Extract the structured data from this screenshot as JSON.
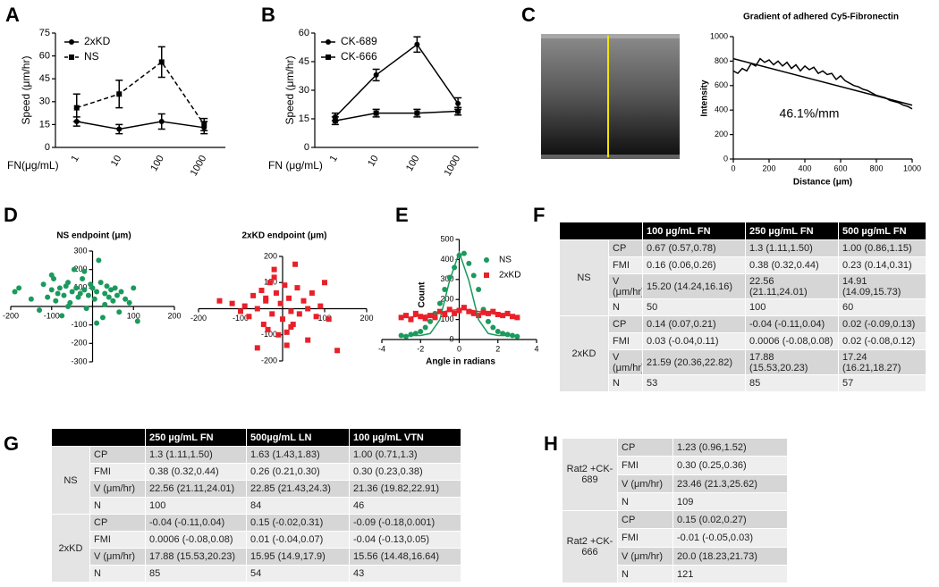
{
  "panel_labels": [
    "A",
    "B",
    "C",
    "D",
    "E",
    "F",
    "G",
    "H"
  ],
  "chart_data": [
    {
      "type": "line",
      "categories": [
        "1",
        "10",
        "100",
        "1000"
      ],
      "ylabel": "Speed (μm/hr)",
      "xlabel": "FN(μg/mL)",
      "ylim": [
        0,
        75
      ],
      "yticks": [
        0,
        15,
        30,
        45,
        60,
        75
      ],
      "series": [
        {
          "name": "2xKD",
          "color": "#000000",
          "marker": "circle",
          "dash": false,
          "values": [
            17,
            12,
            17,
            13
          ],
          "errors": [
            3,
            3,
            5,
            4
          ]
        },
        {
          "name": "NS",
          "color": "#000000",
          "marker": "square",
          "dash": true,
          "values": [
            26,
            35,
            56,
            15
          ],
          "errors": [
            9,
            9,
            10,
            4
          ]
        }
      ]
    },
    {
      "type": "line",
      "categories": [
        "1",
        "10",
        "100",
        "1000"
      ],
      "ylabel": "Speed (μm/hr)",
      "xlabel": "FN (μg/mL)",
      "ylim": [
        0,
        60
      ],
      "yticks": [
        0,
        15,
        30,
        45,
        60
      ],
      "series": [
        {
          "name": "CK-689",
          "color": "#000000",
          "marker": "circle",
          "dash": false,
          "values": [
            16,
            38,
            54,
            23
          ],
          "errors": [
            2,
            3,
            4,
            3
          ]
        },
        {
          "name": "CK-666",
          "color": "#000000",
          "marker": "square",
          "dash": false,
          "values": [
            14,
            18,
            18,
            19
          ],
          "errors": [
            2,
            2,
            2,
            2
          ]
        }
      ]
    },
    {
      "type": "line",
      "title": "Gradient of adhered Cy5-Fibronectin",
      "xlabel": "Distance (μm)",
      "ylabel": "Intensity",
      "annotation": "46.1%/mm",
      "xlim": [
        0,
        1000
      ],
      "ylim": [
        0,
        1000
      ],
      "xticks": [
        0,
        200,
        400,
        600,
        800,
        1000
      ],
      "yticks": [
        0,
        200,
        400,
        600,
        800,
        1000
      ],
      "series": [
        {
          "color": "#000000",
          "x": [
            0,
            25,
            50,
            75,
            100,
            125,
            150,
            175,
            200,
            225,
            250,
            275,
            300,
            325,
            350,
            375,
            400,
            425,
            450,
            475,
            500,
            525,
            550,
            575,
            600,
            625,
            650,
            675,
            700,
            725,
            750,
            775,
            800,
            825,
            850,
            875,
            900,
            925,
            950,
            975,
            1000
          ],
          "values": [
            720,
            700,
            740,
            720,
            780,
            760,
            820,
            790,
            810,
            770,
            800,
            760,
            790,
            740,
            770,
            720,
            760,
            730,
            750,
            700,
            720,
            690,
            700,
            650,
            680,
            640,
            620,
            600,
            590,
            570,
            560,
            540,
            520,
            510,
            500,
            480,
            470,
            460,
            440,
            430,
            410
          ]
        },
        {
          "color": "#000000",
          "x": [
            0,
            1000
          ],
          "values": [
            820,
            440
          ]
        }
      ]
    },
    {
      "type": "scatter",
      "title": "NS endpoint (μm)",
      "xlim": [
        -200,
        200
      ],
      "ylim": [
        -300,
        300
      ],
      "xticks": [
        -200,
        -100,
        100,
        200
      ],
      "yticks": [
        -300,
        -200,
        -100,
        100,
        200,
        300
      ],
      "series": [
        {
          "color": "#1a9a5c",
          "marker": "circle",
          "x": [
            -190,
            -180,
            -150,
            -130,
            -120,
            -110,
            -100,
            -95,
            -90,
            -85,
            -80,
            -75,
            -70,
            -65,
            -60,
            -55,
            -50,
            -45,
            -40,
            -35,
            -30,
            -25,
            -20,
            -15,
            -10,
            -5,
            0,
            5,
            10,
            15,
            20,
            25,
            30,
            35,
            40,
            45,
            50,
            55,
            60,
            65,
            70,
            80,
            90,
            100,
            110,
            -60,
            -20,
            10,
            30,
            -100
          ],
          "values": [
            80,
            100,
            40,
            -20,
            120,
            50,
            90,
            150,
            30,
            70,
            100,
            -50,
            60,
            110,
            130,
            20,
            80,
            200,
            100,
            50,
            70,
            150,
            90,
            -10,
            60,
            120,
            100,
            40,
            80,
            250,
            130,
            -60,
            70,
            110,
            50,
            90,
            30,
            100,
            60,
            -30,
            80,
            40,
            20,
            100,
            -80,
            0,
            190,
            -90,
            10,
            170
          ]
        }
      ]
    },
    {
      "type": "scatter",
      "title": "2xKD endpoint (μm)",
      "xlim": [
        -200,
        200
      ],
      "ylim": [
        -200,
        200
      ],
      "xticks": [
        -200,
        -100,
        100,
        200
      ],
      "yticks": [
        -200,
        -100,
        100,
        200
      ],
      "series": [
        {
          "color": "#e8202a",
          "marker": "square",
          "x": [
            -150,
            -120,
            -100,
            -90,
            -80,
            -70,
            -60,
            -50,
            -45,
            -40,
            -35,
            -30,
            -25,
            -20,
            -15,
            -10,
            -5,
            0,
            5,
            10,
            15,
            20,
            25,
            30,
            35,
            40,
            50,
            60,
            70,
            80,
            90,
            100,
            110,
            130,
            -60,
            -20,
            10,
            -40,
            20,
            60
          ],
          "values": [
            30,
            20,
            -10,
            10,
            -30,
            50,
            0,
            70,
            -60,
            30,
            -80,
            100,
            -20,
            150,
            60,
            -100,
            20,
            -40,
            90,
            -140,
            40,
            -10,
            -60,
            170,
            80,
            -20,
            30,
            -120,
            60,
            -30,
            10,
            100,
            -40,
            -160,
            -150,
            120,
            -90,
            40,
            -70,
            0
          ]
        }
      ]
    },
    {
      "type": "scatter",
      "xlabel": "Angle in radians",
      "ylabel": "Count",
      "xlim": [
        -4,
        4
      ],
      "ylim": [
        0,
        500
      ],
      "xticks": [
        -4,
        -2,
        0,
        2,
        4
      ],
      "yticks": [
        0,
        100,
        200,
        300,
        400,
        500
      ],
      "series": [
        {
          "name": "NS",
          "color": "#1a9a5c",
          "marker": "circle",
          "x": [
            -3,
            -2.75,
            -2.5,
            -2.25,
            -2,
            -1.75,
            -1.5,
            -1.25,
            -1,
            -0.75,
            -0.5,
            -0.25,
            0,
            0.25,
            0.5,
            0.75,
            1,
            1.25,
            1.5,
            1.75,
            2,
            2.25,
            2.5,
            2.75,
            3
          ],
          "values": [
            20,
            15,
            25,
            30,
            40,
            60,
            90,
            130,
            180,
            250,
            310,
            360,
            420,
            430,
            380,
            320,
            250,
            150,
            90,
            60,
            40,
            30,
            25,
            20,
            15
          ]
        },
        {
          "name": "2xKD",
          "color": "#e8202a",
          "marker": "square",
          "x": [
            -3,
            -2.75,
            -2.5,
            -2.25,
            -2,
            -1.75,
            -1.5,
            -1.25,
            -1,
            -0.75,
            -0.5,
            -0.25,
            0,
            0.25,
            0.5,
            0.75,
            1,
            1.25,
            1.5,
            1.75,
            2,
            2.25,
            2.5,
            2.75,
            3
          ],
          "values": [
            110,
            120,
            100,
            130,
            115,
            105,
            120,
            110,
            140,
            125,
            150,
            130,
            145,
            160,
            140,
            130,
            120,
            135,
            130,
            140,
            125,
            120,
            130,
            115,
            110
          ]
        },
        {
          "color": "#1a9a5c",
          "line": true,
          "x": [
            -3,
            -2.5,
            -2,
            -1.5,
            -1,
            -0.5,
            0,
            0.5,
            1,
            1.5,
            2,
            2.5,
            3
          ],
          "values": [
            20,
            20,
            20,
            30,
            99,
            294,
            435,
            294,
            99,
            30,
            20,
            20,
            20
          ]
        },
        {
          "color": "#e8202a",
          "line": true,
          "x": [
            -3,
            -2.5,
            -2,
            -1.5,
            -1,
            -0.5,
            0,
            0.5,
            1,
            1.5,
            2,
            2.5,
            3
          ],
          "values": [
            110,
            112,
            118,
            125,
            135,
            145,
            150,
            148,
            140,
            132,
            125,
            120,
            118
          ]
        }
      ]
    }
  ],
  "tables": [
    {
      "header": [
        "100 µg/mL FN",
        "250 µg/mL FN",
        "500 µg/mL FN"
      ],
      "groups": [
        {
          "name": "NS",
          "rows": [
            [
              "CP",
              "0.67 (0.57,0.78)",
              "1.3 (1.11,1.50)",
              "1.00 (0.86,1.15)"
            ],
            [
              "FMI",
              "0.16 (0.06,0.26)",
              "0.38 (0.32,0.44)",
              "0.23 (0.14,0.31)"
            ],
            [
              "V (μm/hr)",
              "15.20 (14.24,16.16)",
              "22.56 (21.11,24.01)",
              "14.91 (14.09,15.73)"
            ],
            [
              "N",
              "50",
              "100",
              "60"
            ]
          ]
        },
        {
          "name": "2xKD",
          "rows": [
            [
              "CP",
              "0.14 (0.07,0.21)",
              "-0.04 (-0.11,0.04)",
              "0.02 (-0.09,0.13)"
            ],
            [
              "FMI",
              "0.03 (-0.04,0.11)",
              "0.0006 (-0.08,0.08)",
              "0.02 (-0.08,0.12)"
            ],
            [
              "V (μm/hr)",
              "21.59 (20.36,22.82)",
              "17.88 (15.53,20.23)",
              "17.24 (16.21,18.27)"
            ],
            [
              "N",
              "53",
              "85",
              "57"
            ]
          ]
        }
      ]
    },
    {
      "header": [
        "250 µg/mL FN",
        "500µg/mL LN",
        "100 µg/mL VTN"
      ],
      "groups": [
        {
          "name": "NS",
          "rows": [
            [
              "CP",
              "1.3 (1.11,1.50)",
              "1.63 (1.43,1.83)",
              "1.00 (0.71,1.3)"
            ],
            [
              "FMI",
              "0.38 (0.32,0.44)",
              "0.26 (0.21,0.30)",
              "0.30 (0.23,0.38)"
            ],
            [
              "V (μm/hr)",
              "22.56 (21.11,24.01)",
              "22.85 (21.43,24.3)",
              "21.36 (19.82,22.91)"
            ],
            [
              "N",
              "100",
              "84",
              "46"
            ]
          ]
        },
        {
          "name": "2xKD",
          "rows": [
            [
              "CP",
              "-0.04 (-0.11,0.04)",
              "0.15 (-0.02,0.31)",
              "-0.09 (-0.18,0.001)"
            ],
            [
              "FMI",
              "0.0006 (-0.08,0.08)",
              "0.01 (-0.04,0.07)",
              "-0.04 (-0.13,0.05)"
            ],
            [
              "V (μm/hr)",
              "17.88 (15.53,20.23)",
              "15.95 (14.9,17.9)",
              "15.56 (14.48,16.64)"
            ],
            [
              "N",
              "85",
              "54",
              "43"
            ]
          ]
        }
      ]
    },
    {
      "groups": [
        {
          "name": "Rat2 +CK-689",
          "rows": [
            [
              "CP",
              "1.23 (0.96,1.52)"
            ],
            [
              "FMI",
              "0.30 (0.25,0.36)"
            ],
            [
              "V (μm/hr)",
              "23.46 (21.3,25.62)"
            ],
            [
              "N",
              "109"
            ]
          ]
        },
        {
          "name": "Rat2 +CK-666",
          "rows": [
            [
              "CP",
              "0.15 (0.02,0.27)"
            ],
            [
              "FMI",
              "-0.01 (-0.05,0.03)"
            ],
            [
              "V (μm/hr)",
              "20.0 (18.23,21.73)"
            ],
            [
              "N",
              "121"
            ]
          ]
        }
      ]
    }
  ]
}
